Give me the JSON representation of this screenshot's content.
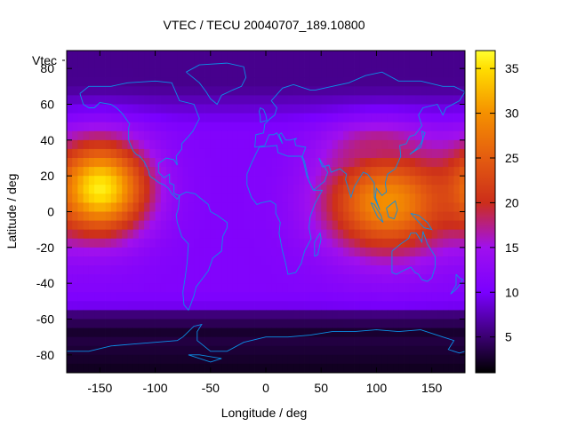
{
  "chart_data": {
    "type": "heatmap",
    "title": "VTEC / TECU 20040707_189.10800",
    "xlabel": "Longitude / deg",
    "ylabel": "Latitude / deg",
    "series_key_label": "Vtec",
    "xlim": [
      -180,
      180
    ],
    "ylim": [
      -90,
      90
    ],
    "x_ticks": [
      -150,
      -100,
      -50,
      0,
      50,
      100,
      150
    ],
    "y_ticks": [
      -80,
      -60,
      -40,
      -20,
      0,
      20,
      40,
      60,
      80
    ],
    "x_tick_labels": [
      "-150",
      "-100",
      "-50",
      "0",
      "50",
      "100",
      "150"
    ],
    "y_tick_labels": [
      "-80",
      "-60",
      "-40",
      "-20",
      "0",
      "20",
      "40",
      "60",
      "80"
    ],
    "colorbar": {
      "range": [
        1,
        37
      ],
      "ticks": [
        5,
        10,
        15,
        20,
        25,
        30,
        35
      ],
      "tick_labels": [
        "5",
        "10",
        "15",
        "20",
        "25",
        "30",
        "35"
      ],
      "stops": [
        {
          "value": 1,
          "color": "#000000"
        },
        {
          "value": 5,
          "color": "#3a0070"
        },
        {
          "value": 10,
          "color": "#7a00ff"
        },
        {
          "value": 15,
          "color": "#a010ee"
        },
        {
          "value": 20,
          "color": "#cc2e1a"
        },
        {
          "value": 25,
          "color": "#e45c10"
        },
        {
          "value": 30,
          "color": "#f59000"
        },
        {
          "value": 35,
          "color": "#ffde00"
        },
        {
          "value": 37,
          "color": "#ffff30"
        }
      ]
    },
    "grid": false,
    "legend": "colorbar right",
    "coastline_color": "#0b8fe6",
    "features": [
      {
        "name": "pacific-maximum",
        "lon": -150,
        "lat": 13,
        "peak_tecu": 36,
        "spread_lon": 30,
        "spread_lat": 18
      },
      {
        "name": "asia-maximum",
        "lon": 110,
        "lat": 5,
        "peak_tecu": 30,
        "spread_lon": 40,
        "spread_lat": 20
      },
      {
        "name": "east-asia-band",
        "lon": 100,
        "lat": 35,
        "peak_tecu": 18,
        "spread_lon": 30,
        "spread_lat": 10
      },
      {
        "name": "atlantic-enhancement",
        "lon": -20,
        "lat": 10,
        "peak_tecu": 10,
        "spread_lon": 35,
        "spread_lat": 15
      }
    ],
    "background_tecu_mid": 11,
    "background_tecu_high_lat": 6,
    "antarctic_tecu": 2
  }
}
